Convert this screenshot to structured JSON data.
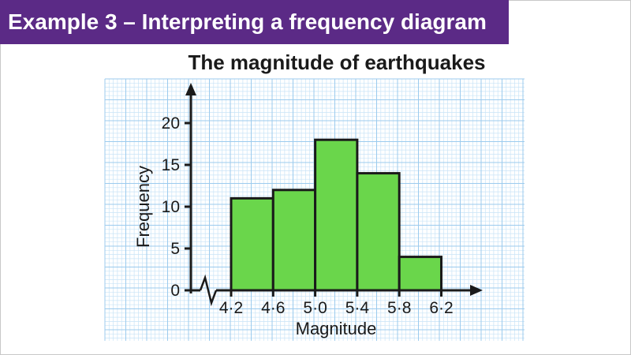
{
  "header": {
    "title": "Example 3 – Interpreting a frequency diagram"
  },
  "colors": {
    "header_bg": "#5b2a86",
    "bar_fill": "#6ad64b",
    "bar_stroke": "#1a1a1a",
    "grid_minor": "#c9e4f7",
    "grid_major": "#9ccbee",
    "axis": "#1a1a1a"
  },
  "chart_data": {
    "type": "bar",
    "title": "The magnitude of earthquakes",
    "xlabel": "Magnitude",
    "ylabel": "Frequency",
    "bins": [
      {
        "from": 4.2,
        "to": 4.6,
        "value": 11
      },
      {
        "from": 4.6,
        "to": 5.0,
        "value": 12
      },
      {
        "from": 5.0,
        "to": 5.4,
        "value": 18
      },
      {
        "from": 5.4,
        "to": 5.8,
        "value": 14
      },
      {
        "from": 5.8,
        "to": 6.2,
        "value": 4
      }
    ],
    "x_ticks": [
      "4·2",
      "4·6",
      "5·0",
      "5·4",
      "5·8",
      "6·2"
    ],
    "y_ticks": [
      "0",
      "5",
      "10",
      "15",
      "20"
    ],
    "y_tick_values": [
      0,
      5,
      10,
      15,
      20
    ],
    "ylim": [
      0,
      22
    ],
    "xlim": [
      4.2,
      6.2
    ],
    "x_axis_break": true,
    "grid": true,
    "legend": "none"
  }
}
